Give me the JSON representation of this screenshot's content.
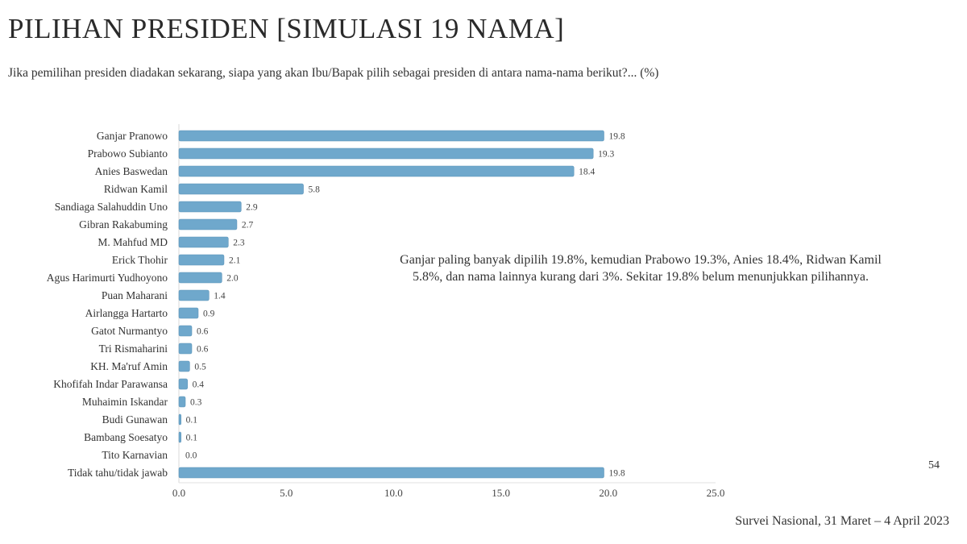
{
  "title": "PILIHAN PRESIDEN [SIMULASI 19 NAMA]",
  "subtitle": "Jika pemilihan presiden diadakan sekarang, siapa yang akan Ibu/Bapak pilih sebagai presiden di antara nama-nama berikut?... (%)",
  "annotation": "Ganjar paling banyak dipilih 19.8%, kemudian Prabowo 19.3%, Anies 18.4%, Ridwan Kamil 5.8%, dan nama lainnya kurang dari 3%. Sekitar 19.8% belum menunjukkan pilihannya.",
  "source": "Survei Nasional, 31 Maret – 4 April 2023",
  "stray_label": "54",
  "colors": {
    "bar": "#6fa8cc",
    "bar_edge": "#5b93b8"
  },
  "chart_data": {
    "type": "bar",
    "orientation": "horizontal",
    "categories": [
      "Ganjar Pranowo",
      "Prabowo Subianto",
      "Anies Baswedan",
      "Ridwan Kamil",
      "Sandiaga Salahuddin Uno",
      "Gibran Rakabuming",
      "M. Mahfud MD",
      "Erick Thohir",
      "Agus Harimurti Yudhoyono",
      "Puan Maharani",
      "Airlangga Hartarto",
      "Gatot Nurmantyo",
      "Tri Rismaharini",
      "KH. Ma'ruf Amin",
      "Khofifah Indar Parawansa",
      "Muhaimin Iskandar",
      "Budi Gunawan",
      "Bambang Soesatyo",
      "Tito Karnavian",
      "Tidak tahu/tidak jawab"
    ],
    "values": [
      19.8,
      19.3,
      18.4,
      5.8,
      2.9,
      2.7,
      2.3,
      2.1,
      2.0,
      1.4,
      0.9,
      0.6,
      0.6,
      0.5,
      0.4,
      0.3,
      0.1,
      0.1,
      0.0,
      19.8
    ],
    "data_labels": [
      "19.8",
      "19.3",
      "18.4",
      "5.8",
      "2.9",
      "2.7",
      "2.3",
      "2.1",
      "2.0",
      "1.4",
      "0.9",
      "0.6",
      "0.6",
      "0.5",
      "0.4",
      "0.3",
      "0.1",
      "0.1",
      "0.0",
      "19.8"
    ],
    "xlim": [
      0,
      25
    ],
    "xticks": [
      "0.0",
      "5.0",
      "10.0",
      "15.0",
      "20.0",
      "25.0"
    ],
    "grid": false,
    "xlabel": "",
    "ylabel": ""
  }
}
